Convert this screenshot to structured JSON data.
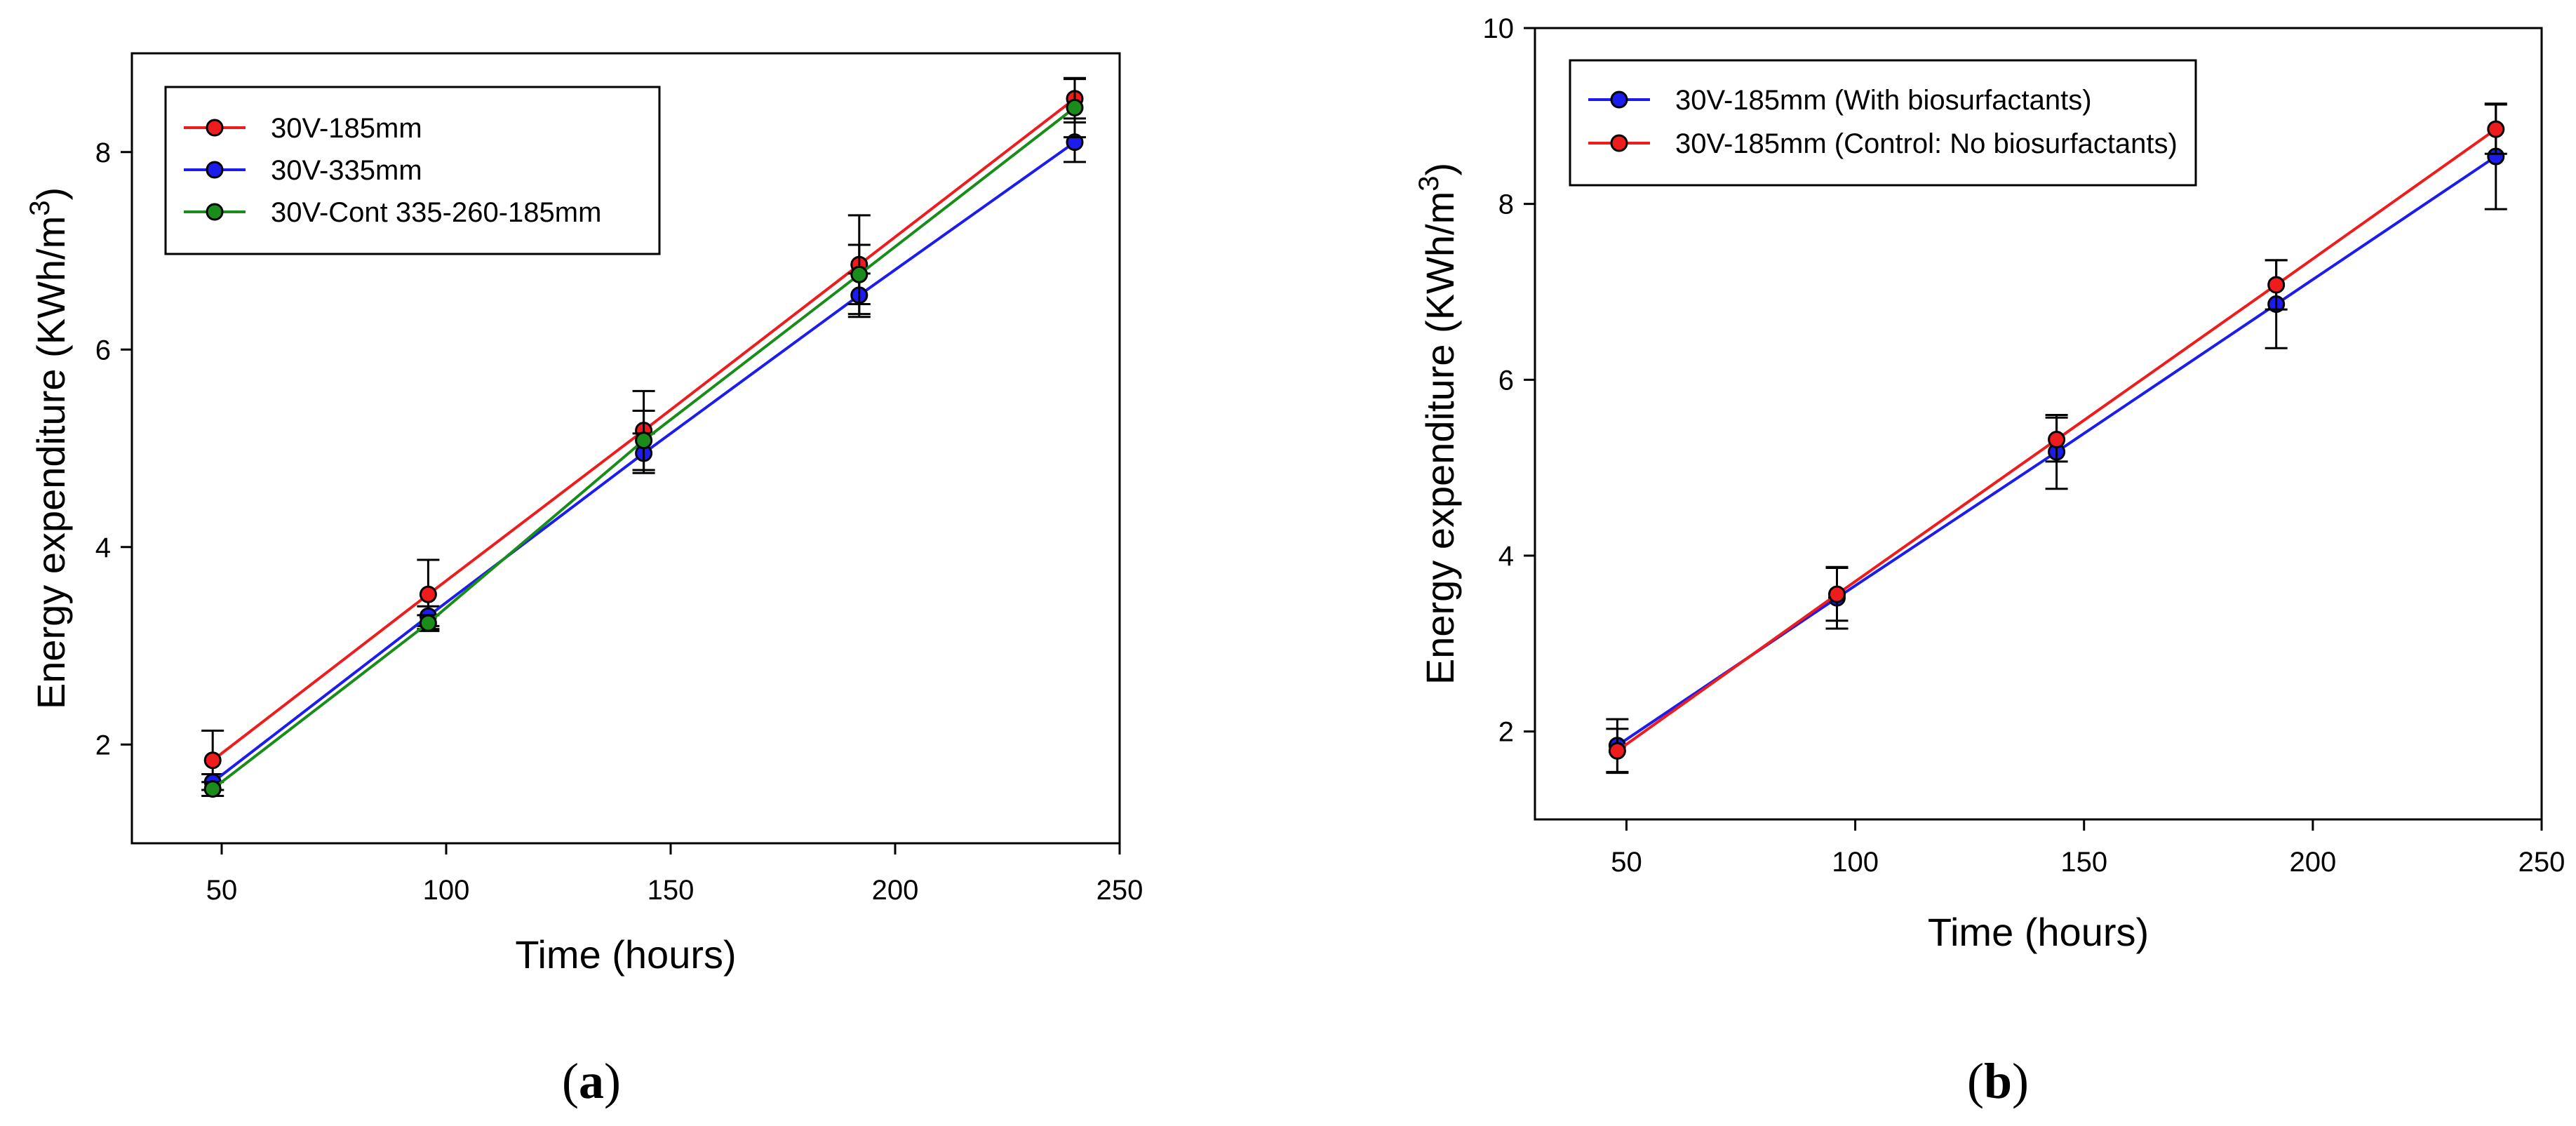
{
  "chart_data": [
    {
      "id": "a",
      "type": "line",
      "panel_label": "a",
      "xlabel": "Time (hours)",
      "ylabel": "Energy expenditure (KWh/m",
      "ylabel_superscript": "3",
      "ylabel_suffix": ")",
      "xlim": [
        30,
        250
      ],
      "ylim": [
        1,
        9
      ],
      "xticks": [
        50,
        100,
        150,
        200,
        250
      ],
      "yticks": [
        2,
        4,
        6,
        8
      ],
      "legend_position": "top-left",
      "series": [
        {
          "name": "30V-185mm",
          "color": "#ee1c1c",
          "x": [
            48,
            96,
            144,
            192,
            240
          ],
          "y": [
            1.84,
            3.52,
            5.18,
            6.86,
            8.54
          ],
          "err": [
            0.3,
            0.35,
            0.4,
            0.5,
            0.2
          ]
        },
        {
          "name": "30V-335mm",
          "color": "#1c1cee",
          "x": [
            48,
            96,
            144,
            192,
            240
          ],
          "y": [
            1.62,
            3.3,
            4.95,
            6.55,
            8.1
          ],
          "err": [
            0.08,
            0.1,
            0.2,
            0.22,
            0.2
          ]
        },
        {
          "name": "30V-Cont 335-260-185mm",
          "color": "#1a8c1a",
          "x": [
            48,
            96,
            144,
            192,
            240
          ],
          "y": [
            1.55,
            3.23,
            5.08,
            6.76,
            8.45
          ],
          "err": [
            0.07,
            0.08,
            0.3,
            0.3,
            0.3
          ]
        }
      ]
    },
    {
      "id": "b",
      "type": "line",
      "panel_label": "b",
      "xlabel": "Time (hours)",
      "ylabel": "Energy expenditure (KWh/m",
      "ylabel_superscript": "3",
      "ylabel_suffix": ")",
      "xlim": [
        30,
        250
      ],
      "ylim": [
        1,
        10
      ],
      "xticks": [
        50,
        100,
        150,
        200,
        250
      ],
      "yticks": [
        2,
        4,
        6,
        8,
        10
      ],
      "legend_position": "top-left",
      "series": [
        {
          "name": "30V-185mm (With biosurfactants)",
          "color": "#1c1cee",
          "x": [
            48,
            96,
            144,
            192,
            240
          ],
          "y": [
            1.84,
            3.52,
            5.18,
            6.86,
            8.54
          ],
          "err": [
            0.3,
            0.35,
            0.42,
            0.5,
            0.6
          ]
        },
        {
          "name": "30V-185mm (Control: No biosurfactants)",
          "color": "#ee1c1c",
          "x": [
            48,
            96,
            144,
            192,
            240
          ],
          "y": [
            1.78,
            3.56,
            5.32,
            7.08,
            8.85
          ],
          "err": [
            0.25,
            0.3,
            0.25,
            0.28,
            0.28
          ]
        }
      ]
    }
  ]
}
